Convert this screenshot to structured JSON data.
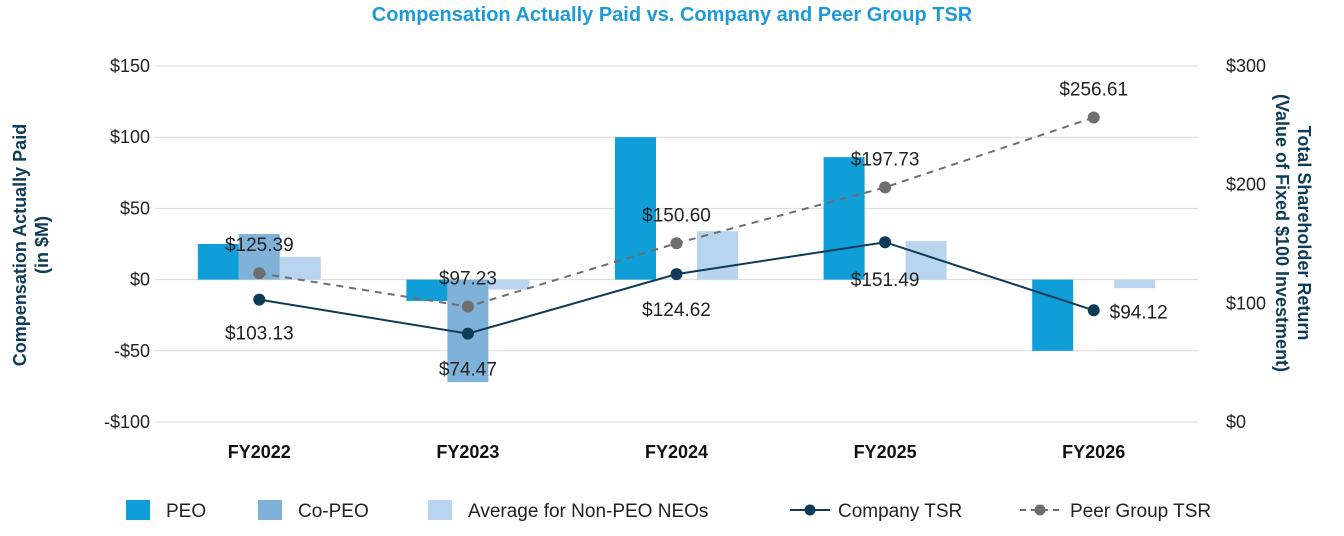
{
  "title": "Compensation Actually Paid vs. Company and Peer Group TSR",
  "colors": {
    "title": "#1f9ad6",
    "peo": "#0f9ed8",
    "co_peo": "#7fb2d9",
    "non_peo": "#b8d4ee",
    "company_tsr": "#0e3b57",
    "peer_tsr": "#6e6e6e",
    "grid": "#d9d9d9"
  },
  "chart_data": {
    "type": "bar+line",
    "categories": [
      "FY2022",
      "FY2023",
      "FY2024",
      "FY2025",
      "FY2026"
    ],
    "left_axis": {
      "label_line1": "Compensation Actually Paid",
      "label_line2": "(in $M)",
      "ylim": [
        -100,
        150
      ],
      "ticks": [
        150,
        100,
        50,
        0,
        -50,
        -100
      ],
      "tick_labels": [
        "$150",
        "$100",
        "$50",
        "$0",
        "-$50",
        "-$100"
      ]
    },
    "right_axis": {
      "label_line1": "Total Shareholder Return",
      "label_line2": "(Value of Fixed $100 Investment)",
      "ylim": [
        0,
        300
      ],
      "ticks": [
        300,
        200,
        100,
        0
      ],
      "tick_labels": [
        "$300",
        "$200",
        "$100",
        "$0"
      ]
    },
    "bar_series": [
      {
        "name": "PEO",
        "values": [
          25,
          -15,
          100,
          86,
          -50
        ]
      },
      {
        "name": "Co-PEO",
        "values": [
          32,
          -72,
          null,
          null,
          null
        ]
      },
      {
        "name": "Average for Non-PEO NEOs",
        "values": [
          16,
          -7,
          34,
          27,
          -6
        ]
      }
    ],
    "line_series": [
      {
        "name": "Company TSR",
        "values": [
          103.13,
          74.47,
          124.62,
          151.49,
          94.12
        ],
        "labels": [
          "$103.13",
          "$74.47",
          "$124.62",
          "$151.49",
          "$94.12"
        ]
      },
      {
        "name": "Peer Group TSR",
        "values": [
          125.39,
          97.23,
          150.6,
          197.73,
          256.61
        ],
        "labels": [
          "$125.39",
          "$97.23",
          "$150.60",
          "$197.73",
          "$256.61"
        ]
      }
    ],
    "grid": true,
    "legend_position": "bottom"
  }
}
